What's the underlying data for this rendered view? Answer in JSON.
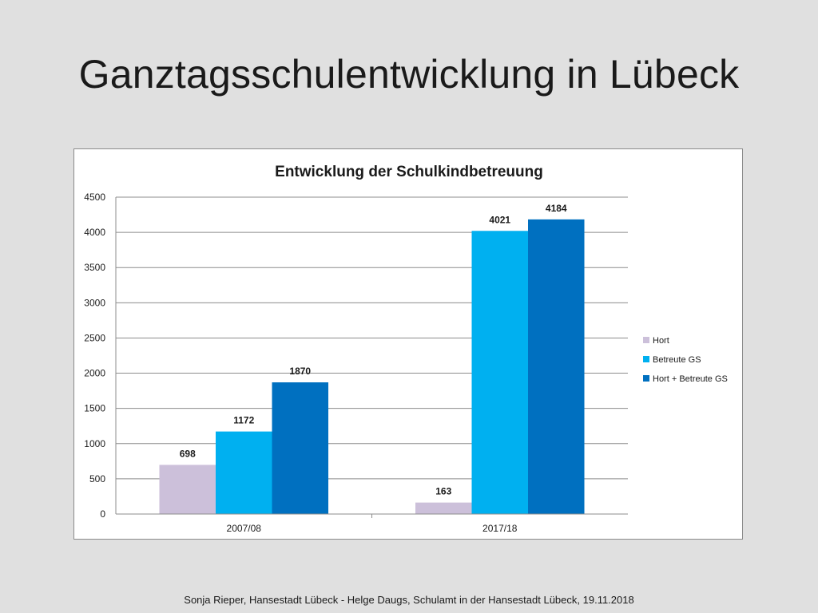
{
  "slide": {
    "title": "Ganztagsschulentwicklung in Lübeck",
    "footer": "Sonja Rieper, Hansestadt Lübeck  - Helge Daugs, Schulamt in der Hansestadt Lübeck, 19.11.2018"
  },
  "chart_data": {
    "type": "bar",
    "title": "Entwicklung der Schulkindbetreuung",
    "xlabel": "",
    "ylabel": "",
    "categories": [
      "2007/08",
      "2017/18"
    ],
    "series": [
      {
        "name": "Hort",
        "values": [
          698,
          163
        ],
        "color": "#ccc0da"
      },
      {
        "name": "Betreute GS",
        "values": [
          1172,
          4021
        ],
        "color": "#00b0f0"
      },
      {
        "name": "Hort + Betreute GS",
        "values": [
          1870,
          4184
        ],
        "color": "#0070c0"
      }
    ],
    "ylim": [
      0,
      4500
    ],
    "yticks": [
      0,
      500,
      1000,
      1500,
      2000,
      2500,
      3000,
      3500,
      4000,
      4500
    ],
    "grid": true,
    "data_labels": true,
    "legend_position": "right"
  }
}
